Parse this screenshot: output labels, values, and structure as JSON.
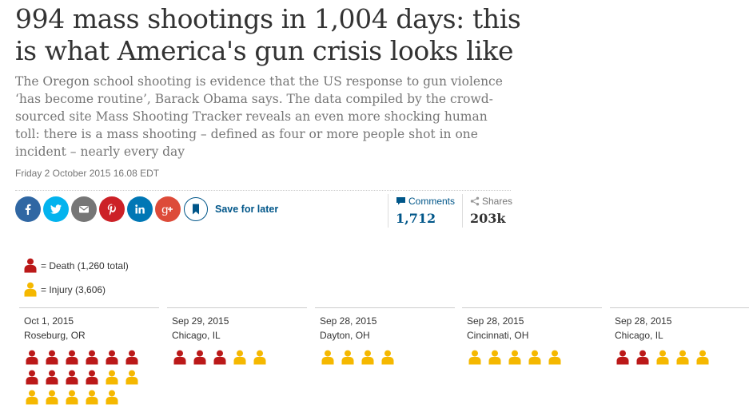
{
  "article": {
    "headline": "994 mass shootings in 1,004 days: this is what America's gun crisis looks like",
    "standfirst": "The Oregon school shooting is evidence that the US response to gun violence ‘has become routine’, Barack Obama says. The data compiled by the crowd-sourced site Mass Shooting Tracker reveals an even more shocking human toll: there is a mass shooting – defined as four or more people shot in one incident – nearly every day",
    "dateline": "Friday 2 October 2015 16.08 EDT"
  },
  "share": {
    "buttons": [
      {
        "name": "facebook",
        "color": "#3067a3",
        "icon": "facebook-icon"
      },
      {
        "name": "twitter",
        "color": "#03b3ee",
        "icon": "twitter-icon"
      },
      {
        "name": "email",
        "color": "#767676",
        "icon": "email-icon"
      },
      {
        "name": "pinterest",
        "color": "#cc2127",
        "icon": "pinterest-icon"
      },
      {
        "name": "linkedin",
        "color": "#0077b5",
        "icon": "linkedin-icon"
      },
      {
        "name": "googleplus",
        "color": "#dd4b39",
        "icon": "googleplus-icon"
      }
    ],
    "save_label": "Save for later",
    "comments_label": "Comments",
    "comments_count": "1,712",
    "shares_label": "Shares",
    "shares_count": "203k"
  },
  "legend": {
    "death_label": "= Death (1,260 total)",
    "injury_label": "= Injury (3,606)",
    "death_color": "#bb1919",
    "injury_color": "#f5b800"
  },
  "incidents": [
    {
      "date": "Oct 1, 2015",
      "place": "Roseburg, OR",
      "deaths": 10,
      "injuries": 7
    },
    {
      "date": "Sep 29, 2015",
      "place": "Chicago, IL",
      "deaths": 3,
      "injuries": 2
    },
    {
      "date": "Sep 28, 2015",
      "place": "Dayton, OH",
      "deaths": 0,
      "injuries": 4
    },
    {
      "date": "Sep 28, 2015",
      "place": "Cincinnati, OH",
      "deaths": 0,
      "injuries": 5
    },
    {
      "date": "Sep 28, 2015",
      "place": "Chicago, IL",
      "deaths": 2,
      "injuries": 3
    }
  ]
}
